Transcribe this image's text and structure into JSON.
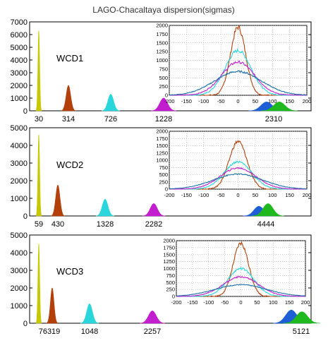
{
  "title": "LAGO-Chacaltaya dispersion(sigmas)",
  "chart_data": [
    {
      "type": "area",
      "label": "WCD1",
      "ylim": [
        0,
        7000
      ],
      "y_ticks": [
        0,
        1000,
        2000,
        3000,
        4000,
        5000,
        6000,
        7000
      ],
      "tick_labels": [
        "30",
        "314",
        "726",
        "1228",
        "2310"
      ],
      "peaks": [
        {
          "color": "#c8c800",
          "height": 6300
        },
        {
          "color": "#b3400a",
          "height": 2000
        },
        {
          "color": "#29d6dc",
          "height": 1300
        },
        {
          "color": "#c21dcf",
          "height": 1000
        },
        {
          "color": "#1f5fd6",
          "height": 700
        },
        {
          "color": "#1fb81f",
          "height": 700
        }
      ],
      "inset": {
        "type": "line",
        "xlim": [
          -200,
          200
        ],
        "ylim": [
          0,
          2000
        ],
        "x_ticks": [
          -200,
          -150,
          -100,
          -50,
          0,
          50,
          100,
          150,
          200
        ],
        "y_ticks": [
          0,
          250,
          500,
          750,
          1000,
          1250,
          1500,
          1750,
          2000
        ],
        "series": [
          {
            "color": "#b3400a",
            "peak": 1950,
            "sigma": 22
          },
          {
            "color": "#29d6dc",
            "peak": 1280,
            "sigma": 38
          },
          {
            "color": "#c21dcf",
            "peak": 950,
            "sigma": 48
          },
          {
            "color": "#1a6fa8",
            "peak": 680,
            "sigma": 68
          }
        ]
      }
    },
    {
      "type": "area",
      "label": "WCD2",
      "ylim": [
        0,
        5000
      ],
      "y_ticks": [
        0,
        1000,
        2000,
        3000,
        4000,
        5000
      ],
      "tick_labels": [
        "59",
        "430",
        "1328",
        "2282",
        "4444"
      ],
      "peaks": [
        {
          "color": "#c8c800",
          "height": 4600
        },
        {
          "color": "#b3400a",
          "height": 1750
        },
        {
          "color": "#29d6dc",
          "height": 950
        },
        {
          "color": "#c21dcf",
          "height": 700
        },
        {
          "color": "#1f5fd6",
          "height": 550
        },
        {
          "color": "#1fb81f",
          "height": 700
        }
      ],
      "inset": {
        "type": "line",
        "xlim": [
          -200,
          200
        ],
        "ylim": [
          0,
          2000
        ],
        "x_ticks": [
          -200,
          -150,
          -100,
          -50,
          0,
          50,
          100,
          150,
          200
        ],
        "y_ticks": [
          0,
          250,
          500,
          750,
          1000,
          1250,
          1500,
          1750,
          2000
        ],
        "series": [
          {
            "color": "#b3400a",
            "peak": 1650,
            "sigma": 26
          },
          {
            "color": "#29d6dc",
            "peak": 950,
            "sigma": 40
          },
          {
            "color": "#c21dcf",
            "peak": 730,
            "sigma": 52
          },
          {
            "color": "#1a6fa8",
            "peak": 520,
            "sigma": 72
          }
        ]
      }
    },
    {
      "type": "area",
      "label": "WCD3",
      "ylim": [
        0,
        5000
      ],
      "y_ticks": [
        0,
        1000,
        2000,
        3000,
        4000,
        5000
      ],
      "tick_labels": [
        "76319",
        "1048",
        "2257",
        "5121"
      ],
      "peaks": [
        {
          "color": "#c8c800",
          "height": 4500
        },
        {
          "color": "#b3400a",
          "height": 2000
        },
        {
          "color": "#29d6dc",
          "height": 1100
        },
        {
          "color": "#c21dcf",
          "height": 700
        },
        {
          "color": "#1f5fd6",
          "height": 750
        },
        {
          "color": "#1fb81f",
          "height": 650
        }
      ],
      "inset": {
        "type": "line",
        "xlim": [
          -200,
          200
        ],
        "ylim": [
          0,
          2000
        ],
        "x_ticks": [
          -200,
          -150,
          -100,
          -50,
          0,
          50,
          100,
          150,
          200
        ],
        "y_ticks": [
          0,
          250,
          500,
          750,
          1000,
          1250,
          1500,
          1750,
          2000
        ],
        "series": [
          {
            "color": "#b3400a",
            "peak": 1900,
            "sigma": 24
          },
          {
            "color": "#29d6dc",
            "peak": 1000,
            "sigma": 40
          },
          {
            "color": "#c21dcf",
            "peak": 700,
            "sigma": 55
          },
          {
            "color": "#1a6fa8",
            "peak": 420,
            "sigma": 80
          }
        ]
      }
    }
  ]
}
